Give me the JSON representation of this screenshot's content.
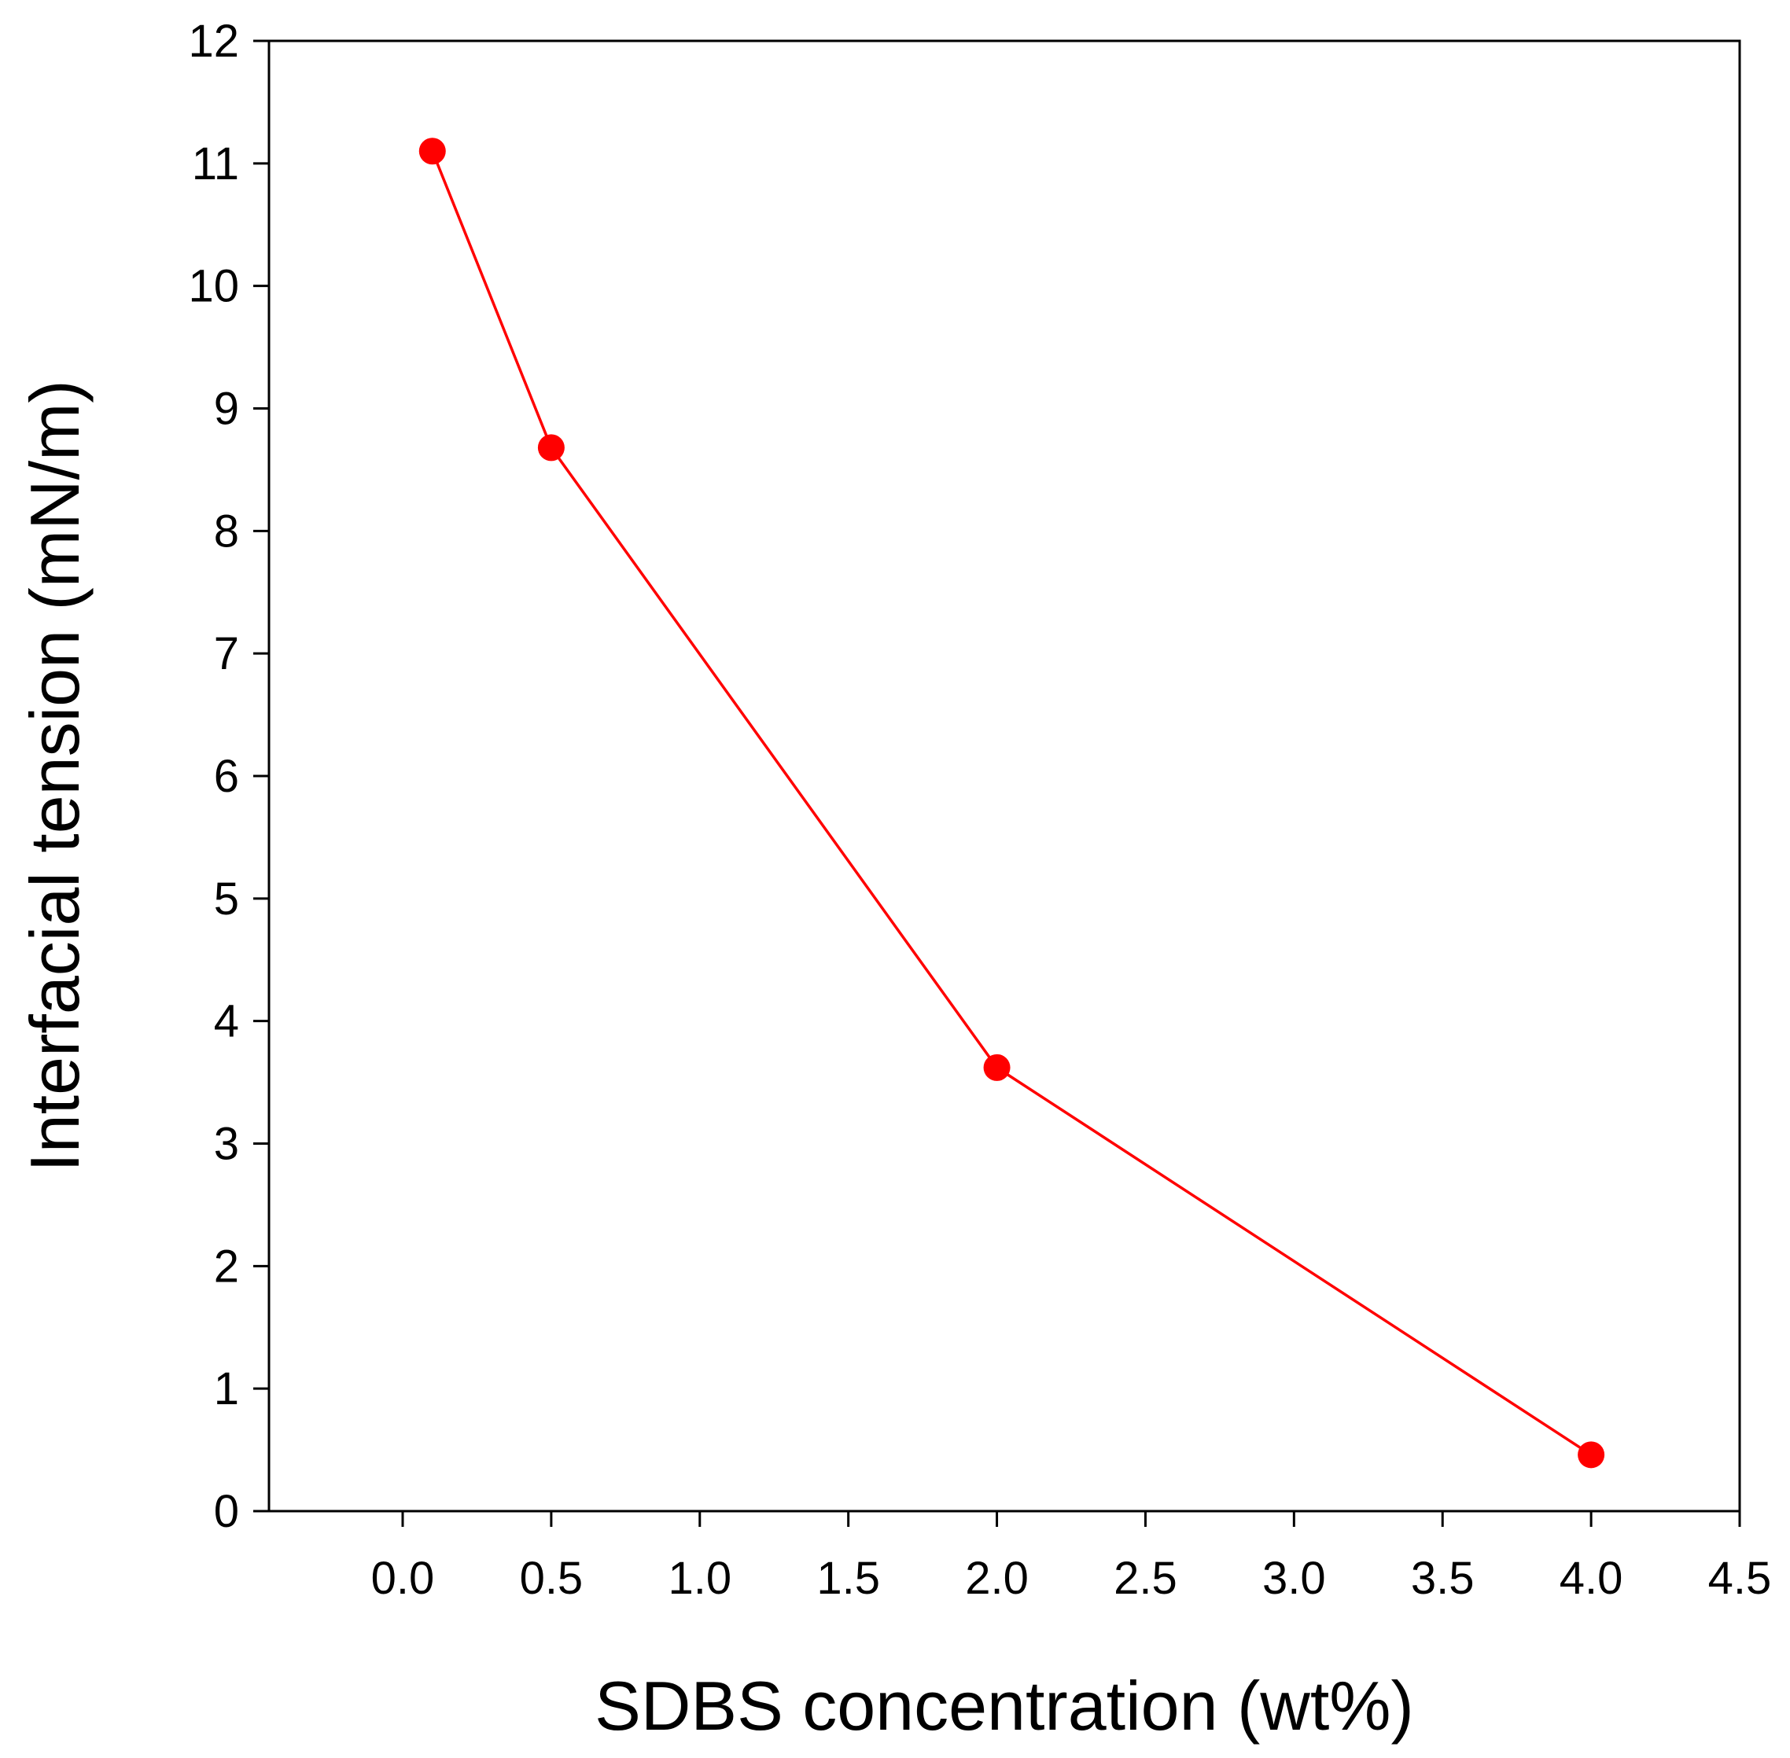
{
  "chart_data": {
    "type": "line",
    "title": "",
    "xlabel": "SDBS concentration (wt%)",
    "ylabel": "Interfacial tension (mN/m)",
    "xlim": [
      -0.45,
      4.5
    ],
    "ylim": [
      0,
      12
    ],
    "x_ticks": [
      0.0,
      0.5,
      1.0,
      1.5,
      2.0,
      2.5,
      3.0,
      3.5,
      4.0,
      4.5
    ],
    "x_tick_labels": [
      "0.0",
      "0.5",
      "1.0",
      "1.5",
      "2.0",
      "2.5",
      "3.0",
      "3.5",
      "4.0",
      "4.5"
    ],
    "y_ticks": [
      0,
      1,
      2,
      3,
      4,
      5,
      6,
      7,
      8,
      9,
      10,
      11,
      12
    ],
    "y_tick_labels": [
      "0",
      "1",
      "2",
      "3",
      "4",
      "5",
      "6",
      "7",
      "8",
      "9",
      "10",
      "11",
      "12"
    ],
    "grid": false,
    "series": [
      {
        "name": "Interfacial tension",
        "color": "#ff0000",
        "x": [
          0.1,
          0.5,
          2.0,
          4.0
        ],
        "y": [
          11.1,
          8.68,
          3.62,
          0.46
        ]
      }
    ]
  }
}
